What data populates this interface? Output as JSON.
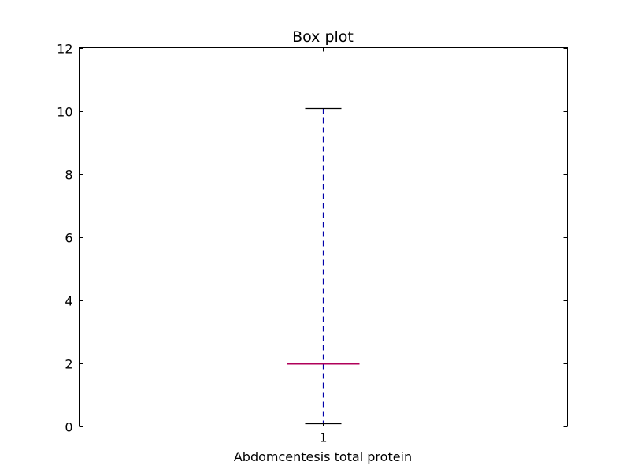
{
  "chart_data": {
    "type": "box",
    "title": "Box plot",
    "xlabel": "Abdomcentesis total protein",
    "ylabel": "",
    "ylim": [
      0,
      12
    ],
    "yticks": [
      0,
      2,
      4,
      6,
      8,
      10,
      12
    ],
    "xtick_labels": [
      "1"
    ],
    "grid": false,
    "boxes": [
      {
        "label": "1",
        "whisker_low": 0.1,
        "q1": 2.0,
        "median": 2.0,
        "q3": 2.0,
        "whisker_high": 10.1
      }
    ],
    "colors": {
      "axes": "#000000",
      "whisker": "#0000aa",
      "median": "#b0005a",
      "cap": "#000000"
    }
  }
}
